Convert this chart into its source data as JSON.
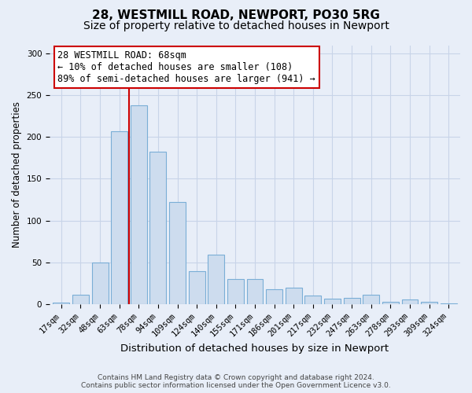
{
  "title_line1": "28, WESTMILL ROAD, NEWPORT, PO30 5RG",
  "title_line2": "Size of property relative to detached houses in Newport",
  "xlabel": "Distribution of detached houses by size in Newport",
  "ylabel": "Number of detached properties",
  "categories": [
    "17sqm",
    "32sqm",
    "48sqm",
    "63sqm",
    "78sqm",
    "94sqm",
    "109sqm",
    "124sqm",
    "140sqm",
    "155sqm",
    "171sqm",
    "186sqm",
    "201sqm",
    "217sqm",
    "232sqm",
    "247sqm",
    "263sqm",
    "278sqm",
    "293sqm",
    "309sqm",
    "324sqm"
  ],
  "values": [
    2,
    11,
    50,
    207,
    238,
    182,
    122,
    39,
    59,
    30,
    30,
    18,
    20,
    10,
    6,
    7,
    11,
    3,
    5,
    3,
    1
  ],
  "bar_color": "#cddcee",
  "bar_edge_color": "#7aaed6",
  "vline_x_index": 3.5,
  "vline_color": "#cc0000",
  "annotation_text": "28 WESTMILL ROAD: 68sqm\n← 10% of detached houses are smaller (108)\n89% of semi-detached houses are larger (941) →",
  "annotation_box_color": "#ffffff",
  "annotation_box_edge_color": "#cc0000",
  "ylim": [
    0,
    310
  ],
  "yticks": [
    0,
    50,
    100,
    150,
    200,
    250,
    300
  ],
  "background_color": "#e8eef8",
  "plot_bg_color": "#e8eef8",
  "grid_color": "#c8d4e8",
  "footer_line1": "Contains HM Land Registry data © Crown copyright and database right 2024.",
  "footer_line2": "Contains public sector information licensed under the Open Government Licence v3.0.",
  "title_fontsize": 11,
  "subtitle_fontsize": 10,
  "xlabel_fontsize": 9.5,
  "ylabel_fontsize": 8.5,
  "tick_fontsize": 7.5,
  "annotation_fontsize": 8.5,
  "footer_fontsize": 6.5
}
